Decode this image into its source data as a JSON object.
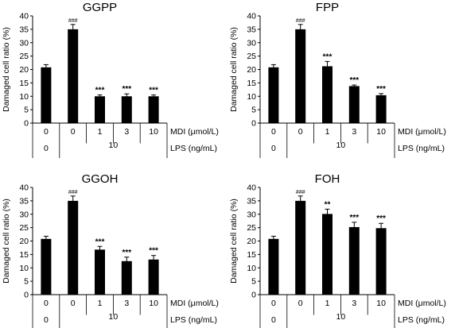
{
  "chart_data": [
    {
      "type": "bar",
      "title": "GGPP",
      "ylabel": "Damaged cell ratio (%)",
      "ylim": [
        0,
        40
      ],
      "yticks": [
        0,
        5,
        10,
        15,
        20,
        25,
        30,
        35,
        40
      ],
      "categories": [
        "0",
        "0",
        "1",
        "3",
        "10"
      ],
      "lps_labels": [
        "0",
        "10"
      ],
      "values": [
        20.8,
        35.0,
        10.0,
        10.0,
        10.0
      ],
      "errors": [
        1.0,
        1.8,
        0.5,
        0.9,
        0.5
      ],
      "annotations": [
        "",
        "###",
        "***",
        "***",
        "***"
      ],
      "mdi_label": "MDI (μmol/L)",
      "lps_label": "LPS (ng/mL)",
      "bar_color": "#000000"
    },
    {
      "type": "bar",
      "title": "FPP",
      "ylabel": "Damaged cell ratio (%)",
      "ylim": [
        0,
        40
      ],
      "yticks": [
        0,
        5,
        10,
        15,
        20,
        25,
        30,
        35,
        40
      ],
      "categories": [
        "0",
        "0",
        "1",
        "3",
        "10"
      ],
      "lps_labels": [
        "0",
        "10"
      ],
      "values": [
        20.8,
        35.0,
        21.2,
        13.8,
        10.4
      ],
      "errors": [
        1.0,
        1.8,
        1.8,
        0.4,
        0.6
      ],
      "annotations": [
        "",
        "###",
        "***",
        "***",
        "***"
      ],
      "mdi_label": "MDI (μmol/L)",
      "lps_label": "LPS (ng/mL)",
      "bar_color": "#000000"
    },
    {
      "type": "bar",
      "title": "GGOH",
      "ylabel": "Damaged cell ratio (%)",
      "ylim": [
        0,
        40
      ],
      "yticks": [
        0,
        5,
        10,
        15,
        20,
        25,
        30,
        35,
        40
      ],
      "categories": [
        "0",
        "0",
        "1",
        "3",
        "10"
      ],
      "lps_labels": [
        "0",
        "10"
      ],
      "values": [
        20.8,
        35.0,
        16.8,
        12.5,
        13.1
      ],
      "errors": [
        1.0,
        1.8,
        1.2,
        1.5,
        1.5
      ],
      "annotations": [
        "",
        "###",
        "***",
        "***",
        "***"
      ],
      "mdi_label": "MDI (μmol/L)",
      "lps_label": "LPS (ng/mL)",
      "bar_color": "#000000"
    },
    {
      "type": "bar",
      "title": "FOH",
      "ylabel": "Damaged cell ratio (%)",
      "ylim": [
        0,
        40
      ],
      "yticks": [
        0,
        5,
        10,
        15,
        20,
        25,
        30,
        35,
        40
      ],
      "categories": [
        "0",
        "0",
        "1",
        "3",
        "10"
      ],
      "lps_labels": [
        "0",
        "10"
      ],
      "values": [
        20.8,
        35.0,
        30.1,
        25.2,
        24.8
      ],
      "errors": [
        1.0,
        1.8,
        1.8,
        1.8,
        1.8
      ],
      "annotations": [
        "",
        "###",
        "**",
        "***",
        "***"
      ],
      "mdi_label": "MDI (μmol/L)",
      "lps_label": "LPS (ng/mL)",
      "bar_color": "#000000"
    }
  ]
}
